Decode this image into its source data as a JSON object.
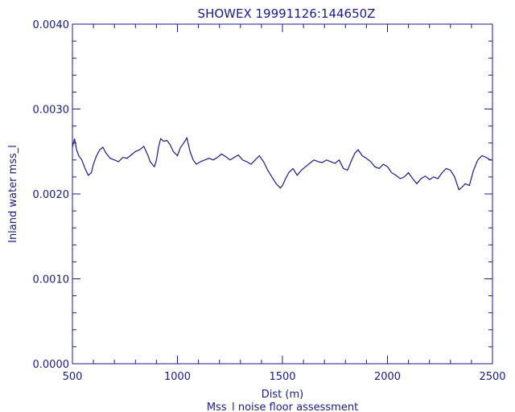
{
  "chart_data": {
    "type": "line",
    "title": "SHOWEX 19991126:144650Z",
    "xlabel": "Dist (m)",
    "ylabel": "Inland water mss_l",
    "caption": "Mss_l noise floor assessment",
    "xlim": [
      500,
      2500
    ],
    "ylim": [
      0.0,
      0.004
    ],
    "x_ticks": [
      500,
      1000,
      1500,
      2000,
      2500
    ],
    "x_tick_labels": [
      "500",
      "1000",
      "1500",
      "2000",
      "2500"
    ],
    "y_ticks": [
      0.0,
      0.001,
      0.002,
      0.003,
      0.004
    ],
    "y_tick_labels": [
      "0.0000",
      "0.0010",
      "0.0020",
      "0.0030",
      "0.0040"
    ],
    "grid": false,
    "color": "#1a1a8c",
    "series": [
      {
        "x": [
          500,
          510,
          520,
          530,
          545,
          560,
          575,
          590,
          600,
          615,
          630,
          645,
          660,
          680,
          700,
          720,
          740,
          760,
          780,
          800,
          820,
          840,
          860,
          870,
          880,
          890,
          900,
          910,
          920,
          935,
          950,
          965,
          980,
          1000,
          1015,
          1030,
          1045,
          1060,
          1075,
          1090,
          1110,
          1130,
          1150,
          1170,
          1190,
          1210,
          1230,
          1250,
          1270,
          1290,
          1310,
          1330,
          1350,
          1370,
          1390,
          1410,
          1430,
          1450,
          1470,
          1490,
          1500,
          1515,
          1530,
          1550,
          1570,
          1590,
          1610,
          1630,
          1650,
          1670,
          1690,
          1710,
          1730,
          1750,
          1770,
          1790,
          1810,
          1830,
          1845,
          1860,
          1880,
          1900,
          1920,
          1940,
          1960,
          1980,
          2000,
          2020,
          2040,
          2060,
          2080,
          2100,
          2120,
          2140,
          2160,
          2180,
          2200,
          2220,
          2240,
          2260,
          2280,
          2300,
          2320,
          2340,
          2355,
          2370,
          2390,
          2410,
          2430,
          2450,
          2470,
          2490,
          2500
        ],
        "y": [
          0.00255,
          0.00265,
          0.00252,
          0.00245,
          0.0024,
          0.0023,
          0.00222,
          0.00225,
          0.00235,
          0.00245,
          0.00252,
          0.00255,
          0.00248,
          0.00242,
          0.0024,
          0.00238,
          0.00243,
          0.00242,
          0.00246,
          0.0025,
          0.00252,
          0.00256,
          0.00245,
          0.00238,
          0.00235,
          0.00232,
          0.0024,
          0.00255,
          0.00265,
          0.00262,
          0.00263,
          0.00258,
          0.0025,
          0.00245,
          0.00255,
          0.0026,
          0.00266,
          0.0025,
          0.0024,
          0.00235,
          0.00238,
          0.0024,
          0.00242,
          0.0024,
          0.00243,
          0.00247,
          0.00244,
          0.0024,
          0.00243,
          0.00246,
          0.0024,
          0.00238,
          0.00235,
          0.0024,
          0.00245,
          0.00238,
          0.00228,
          0.0022,
          0.00212,
          0.00207,
          0.0021,
          0.00218,
          0.00225,
          0.0023,
          0.00222,
          0.00228,
          0.00232,
          0.00236,
          0.0024,
          0.00238,
          0.00237,
          0.0024,
          0.00238,
          0.00236,
          0.0024,
          0.0023,
          0.00228,
          0.0024,
          0.00248,
          0.00252,
          0.00245,
          0.00242,
          0.00238,
          0.00232,
          0.0023,
          0.00235,
          0.00232,
          0.00225,
          0.00222,
          0.00218,
          0.0022,
          0.00225,
          0.00218,
          0.00212,
          0.00218,
          0.00221,
          0.00217,
          0.0022,
          0.00218,
          0.00225,
          0.0023,
          0.00228,
          0.0022,
          0.00205,
          0.00208,
          0.00212,
          0.0021,
          0.00228,
          0.0024,
          0.00245,
          0.00243,
          0.0024,
          0.0024
        ]
      }
    ]
  }
}
